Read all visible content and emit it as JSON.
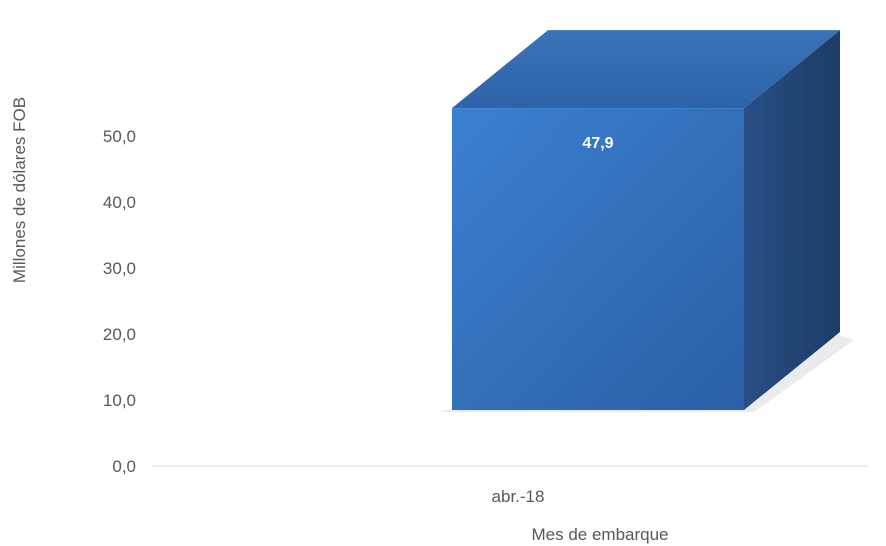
{
  "chart_data": {
    "type": "bar",
    "style": "3d-column",
    "categories": [
      "abr.-18"
    ],
    "values": [
      47.9
    ],
    "value_labels": [
      "47,9"
    ],
    "xlabel": "Mes de embarque",
    "ylabel": "Millones de dólares FOB",
    "ylim": [
      0,
      50
    ],
    "yticks": [
      "0,0",
      "10,0",
      "20,0",
      "30,0",
      "40,0",
      "50,0"
    ],
    "grid": false,
    "legend": "none",
    "bar_color": "#3672c2"
  }
}
